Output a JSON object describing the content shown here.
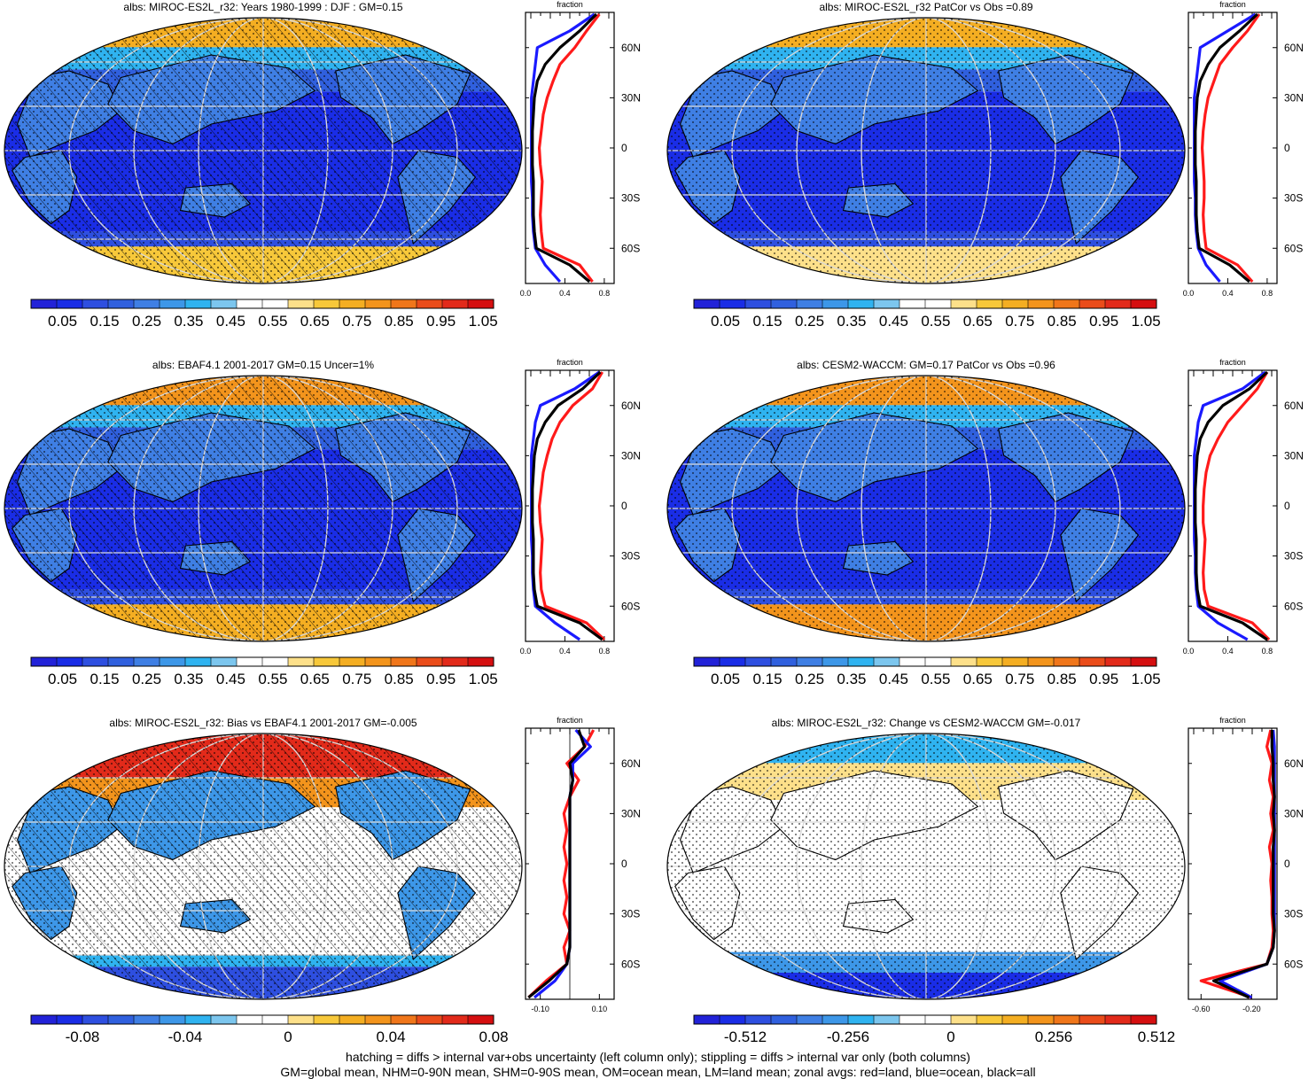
{
  "palette": {
    "abs": [
      "#2222d8",
      "#1a2de6",
      "#2e4fe0",
      "#3060de",
      "#3f7fe4",
      "#3d97e8",
      "#2fb3f0",
      "#7cc6ee",
      "#ffffff",
      "#ffffff",
      "#fde08a",
      "#f7c83a",
      "#f4ae22",
      "#f3941c",
      "#f0761a",
      "#ea4c1a",
      "#e22a1a",
      "#d50f10"
    ],
    "diff": [
      "#2222d8",
      "#1a2de6",
      "#2e4fe0",
      "#3060de",
      "#3f7fe4",
      "#3d97e8",
      "#2fb3f0",
      "#7cc6ee",
      "#ffffff",
      "#ffffff",
      "#fde08a",
      "#f7c83a",
      "#f4ae22",
      "#f3941c",
      "#f0761a",
      "#ea4c1a",
      "#e22a1a",
      "#d50f10"
    ],
    "land": "#ff1a1a",
    "ocean": "#1a1aff",
    "all": "#000000"
  },
  "panels": [
    {
      "id": "p1",
      "title": "albs: MIROC-ES2L_r32: Years 1980-1999 : DJF : GM=0.15",
      "colorbar_labels": [
        "0.05",
        "0.15",
        "0.25",
        "0.35",
        "0.45",
        "0.55",
        "0.65",
        "0.75",
        "0.85",
        "0.95",
        "1.05"
      ],
      "zonal_title": "fraction",
      "zonal_xticks": [
        "0.0",
        "0.4",
        "0.8"
      ],
      "zonal_lat_ticks": [
        "60N",
        "30N",
        "0",
        "30S",
        "60S"
      ],
      "hatching": true,
      "stippling": true,
      "kind": "abs",
      "arctic": 0.78,
      "antarctic": 0.7
    },
    {
      "id": "p2",
      "title": "albs: MIROC-ES2L_r32 PatCor vs Obs =0.89",
      "colorbar_labels": [
        "0.05",
        "0.15",
        "0.25",
        "0.35",
        "0.45",
        "0.55",
        "0.65",
        "0.75",
        "0.85",
        "0.95",
        "1.05"
      ],
      "zonal_title": "fraction",
      "zonal_xticks": [
        "0.0",
        "0.4",
        "0.8"
      ],
      "zonal_lat_ticks": [
        "60N",
        "30N",
        "0",
        "30S",
        "60S"
      ],
      "hatching": false,
      "stippling": true,
      "kind": "abs",
      "arctic": 0.72,
      "antarctic": 0.65
    },
    {
      "id": "p3",
      "title": "albs: EBAF4.1 2001-2017 GM=0.15 Uncer=1%",
      "colorbar_labels": [
        "0.05",
        "0.15",
        "0.25",
        "0.35",
        "0.45",
        "0.55",
        "0.65",
        "0.75",
        "0.85",
        "0.95",
        "1.05"
      ],
      "zonal_title": "fraction",
      "zonal_xticks": [
        "0.0",
        "0.4",
        "0.8"
      ],
      "zonal_lat_ticks": [
        "60N",
        "30N",
        "0",
        "30S",
        "60S"
      ],
      "hatching": true,
      "stippling": true,
      "kind": "abs",
      "arctic": 0.8,
      "antarctic": 0.76
    },
    {
      "id": "p4",
      "title": "albs: CESM2-WACCM: GM=0.17 PatCor vs Obs =0.96",
      "colorbar_labels": [
        "0.05",
        "0.15",
        "0.25",
        "0.35",
        "0.45",
        "0.55",
        "0.65",
        "0.75",
        "0.85",
        "0.95",
        "1.05"
      ],
      "zonal_title": "fraction",
      "zonal_xticks": [
        "0.0",
        "0.4",
        "0.8"
      ],
      "zonal_lat_ticks": [
        "60N",
        "30N",
        "0",
        "30S",
        "60S"
      ],
      "hatching": false,
      "stippling": true,
      "kind": "abs",
      "arctic": 0.82,
      "antarctic": 0.8
    },
    {
      "id": "p5",
      "title": "albs: MIROC-ES2L_r32: Bias vs EBAF4.1 2001-2017 GM=-0.005",
      "colorbar_labels": [
        "-0.08",
        "-0.04",
        "0",
        "0.04",
        "0.08"
      ],
      "zonal_title": "fraction",
      "zonal_xticks": [
        "-0.10",
        "0.10"
      ],
      "zonal_lat_ticks": [
        "60N",
        "30N",
        "0",
        "30S",
        "60S"
      ],
      "hatching": true,
      "stippling": true,
      "kind": "bias",
      "arctic": 0.9,
      "antarctic": 0.12
    },
    {
      "id": "p6",
      "title": "albs: MIROC-ES2L_r32: Change vs CESM2-WACCM GM=-0.017",
      "colorbar_labels": [
        "-0.512",
        "-0.256",
        "0",
        "0.256",
        "0.512"
      ],
      "zonal_title": "fraction",
      "zonal_xticks": [
        "-0.60",
        "-0.20"
      ],
      "zonal_lat_ticks": [
        "60N",
        "30N",
        "0",
        "30S",
        "60S"
      ],
      "hatching": false,
      "stippling": true,
      "kind": "change",
      "arctic": 0.6,
      "antarctic": 0.2
    }
  ],
  "footer": {
    "line1": "hatching = diffs > internal var+obs uncertainty (left column only); stippling = diffs > internal var only (both columns)",
    "line2": "GM=global mean, NHM=0-90N mean, SHM=0-90S mean, OM=ocean mean, LM=land mean; zonal avgs: red=land, blue=ocean, black=all"
  },
  "chart_data": [
    {
      "type": "heatmap",
      "title": "albs: MIROC-ES2L_r32: Years 1980-1999 : DJF : GM=0.15",
      "colorbar": [
        0.05,
        0.15,
        0.25,
        0.35,
        0.45,
        0.55,
        0.65,
        0.75,
        0.85,
        0.95,
        1.05
      ],
      "zonal_avg": {
        "xlim": [
          0,
          0.9
        ],
        "lat": [
          80,
          70,
          60,
          50,
          40,
          30,
          20,
          10,
          0,
          -10,
          -20,
          -30,
          -40,
          -50,
          -60,
          -70,
          -80
        ],
        "series": [
          {
            "name": "red=land",
            "values": [
              0.75,
              0.62,
              0.5,
              0.35,
              0.28,
              0.22,
              0.18,
              0.16,
              0.14,
              0.15,
              0.17,
              0.16,
              0.15,
              0.16,
              0.18,
              0.55,
              0.68
            ]
          },
          {
            "name": "blue=ocean",
            "values": [
              0.7,
              0.45,
              0.12,
              0.1,
              0.08,
              0.06,
              0.06,
              0.06,
              0.06,
              0.06,
              0.06,
              0.07,
              0.07,
              0.08,
              0.1,
              0.2,
              0.35
            ]
          },
          {
            "name": "black=all",
            "values": [
              0.72,
              0.55,
              0.35,
              0.2,
              0.12,
              0.09,
              0.08,
              0.07,
              0.07,
              0.07,
              0.08,
              0.08,
              0.08,
              0.09,
              0.11,
              0.45,
              0.65
            ]
          }
        ]
      }
    },
    {
      "type": "heatmap",
      "title": "albs: MIROC-ES2L_r32 PatCor vs Obs =0.89",
      "colorbar": [
        0.05,
        0.15,
        0.25,
        0.35,
        0.45,
        0.55,
        0.65,
        0.75,
        0.85,
        0.95,
        1.05
      ],
      "zonal_avg": {
        "xlim": [
          0,
          0.9
        ],
        "lat": [
          80,
          70,
          60,
          50,
          40,
          30,
          20,
          10,
          0,
          -10,
          -20,
          -30,
          -40,
          -50,
          -60,
          -70,
          -80
        ],
        "series": [
          {
            "name": "red=land",
            "values": [
              0.72,
              0.6,
              0.45,
              0.32,
              0.26,
              0.2,
              0.17,
              0.15,
              0.14,
              0.15,
              0.16,
              0.16,
              0.15,
              0.16,
              0.18,
              0.5,
              0.65
            ]
          },
          {
            "name": "blue=ocean",
            "values": [
              0.68,
              0.4,
              0.12,
              0.1,
              0.08,
              0.06,
              0.06,
              0.06,
              0.06,
              0.06,
              0.06,
              0.07,
              0.07,
              0.08,
              0.1,
              0.18,
              0.32
            ]
          },
          {
            "name": "black=all",
            "values": [
              0.7,
              0.52,
              0.32,
              0.2,
              0.12,
              0.09,
              0.08,
              0.07,
              0.07,
              0.07,
              0.08,
              0.08,
              0.08,
              0.09,
              0.11,
              0.42,
              0.62
            ]
          }
        ]
      }
    },
    {
      "type": "heatmap",
      "title": "albs: EBAF4.1 2001-2017 GM=0.15 Uncer=1%",
      "colorbar": [
        0.05,
        0.15,
        0.25,
        0.35,
        0.45,
        0.55,
        0.65,
        0.75,
        0.85,
        0.95,
        1.05
      ],
      "zonal_avg": {
        "xlim": [
          0,
          0.9
        ],
        "lat": [
          80,
          70,
          60,
          50,
          40,
          30,
          20,
          10,
          0,
          -10,
          -20,
          -30,
          -40,
          -50,
          -60,
          -70,
          -80
        ],
        "series": [
          {
            "name": "red=land",
            "values": [
              0.78,
              0.68,
              0.48,
              0.35,
              0.27,
              0.22,
              0.18,
              0.16,
              0.14,
              0.15,
              0.17,
              0.16,
              0.15,
              0.16,
              0.2,
              0.62,
              0.8
            ]
          },
          {
            "name": "blue=ocean",
            "values": [
              0.75,
              0.5,
              0.15,
              0.1,
              0.08,
              0.06,
              0.06,
              0.06,
              0.06,
              0.06,
              0.06,
              0.07,
              0.07,
              0.08,
              0.1,
              0.3,
              0.55
            ]
          },
          {
            "name": "black=all",
            "values": [
              0.76,
              0.58,
              0.33,
              0.2,
              0.12,
              0.09,
              0.08,
              0.07,
              0.07,
              0.07,
              0.08,
              0.08,
              0.08,
              0.09,
              0.12,
              0.55,
              0.78
            ]
          }
        ]
      }
    },
    {
      "type": "heatmap",
      "title": "albs: CESM2-WACCM: GM=0.17 PatCor vs Obs =0.96",
      "colorbar": [
        0.05,
        0.15,
        0.25,
        0.35,
        0.45,
        0.55,
        0.65,
        0.75,
        0.85,
        0.95,
        1.05
      ],
      "zonal_avg": {
        "xlim": [
          0,
          0.9
        ],
        "lat": [
          80,
          70,
          60,
          50,
          40,
          30,
          20,
          10,
          0,
          -10,
          -20,
          -30,
          -40,
          -50,
          -60,
          -70,
          -80
        ],
        "series": [
          {
            "name": "red=land",
            "values": [
              0.8,
              0.7,
              0.55,
              0.4,
              0.3,
              0.22,
              0.18,
              0.16,
              0.15,
              0.15,
              0.17,
              0.16,
              0.15,
              0.16,
              0.2,
              0.65,
              0.82
            ]
          },
          {
            "name": "blue=ocean",
            "values": [
              0.78,
              0.55,
              0.15,
              0.1,
              0.08,
              0.06,
              0.06,
              0.06,
              0.06,
              0.06,
              0.06,
              0.07,
              0.07,
              0.08,
              0.1,
              0.3,
              0.6
            ]
          },
          {
            "name": "black=all",
            "values": [
              0.8,
              0.62,
              0.35,
              0.2,
              0.12,
              0.09,
              0.08,
              0.07,
              0.07,
              0.07,
              0.08,
              0.08,
              0.08,
              0.09,
              0.12,
              0.55,
              0.8
            ]
          }
        ]
      }
    },
    {
      "type": "heatmap",
      "title": "albs: MIROC-ES2L_r32: Bias vs EBAF4.1 2001-2017 GM=-0.005",
      "colorbar": [
        -0.08,
        -0.04,
        0,
        0.04,
        0.08
      ],
      "zonal_avg": {
        "xlim": [
          -0.15,
          0.15
        ],
        "lat": [
          80,
          70,
          60,
          50,
          40,
          30,
          20,
          10,
          0,
          -10,
          -20,
          -30,
          -40,
          -50,
          -60,
          -70,
          -80
        ],
        "series": [
          {
            "name": "red=land",
            "values": [
              0.08,
              0.05,
              -0.01,
              0.03,
              0.0,
              -0.02,
              -0.01,
              -0.02,
              -0.01,
              -0.02,
              -0.01,
              -0.02,
              0.0,
              -0.02,
              -0.01,
              -0.08,
              -0.14
            ]
          },
          {
            "name": "blue=ocean",
            "values": [
              0.02,
              0.07,
              0.01,
              0.01,
              0.0,
              0.0,
              0.0,
              0.0,
              0.0,
              0.0,
              0.0,
              0.0,
              0.0,
              0.0,
              -0.01,
              -0.05,
              -0.12
            ]
          },
          {
            "name": "black=all",
            "values": [
              0.03,
              0.05,
              0.0,
              0.01,
              0.0,
              0.0,
              0.0,
              0.0,
              0.0,
              0.0,
              0.0,
              0.0,
              0.0,
              0.0,
              -0.01,
              -0.07,
              -0.14
            ]
          }
        ]
      }
    },
    {
      "type": "heatmap",
      "title": "albs: MIROC-ES2L_r32: Change vs CESM2-WACCM GM=-0.017",
      "colorbar": [
        -0.512,
        -0.256,
        0,
        0.256,
        0.512
      ],
      "zonal_avg": {
        "xlim": [
          -0.7,
          0.0
        ],
        "lat": [
          80,
          70,
          60,
          50,
          40,
          30,
          20,
          10,
          0,
          -10,
          -20,
          -30,
          -40,
          -50,
          -60,
          -70,
          -80
        ],
        "series": [
          {
            "name": "red=land",
            "values": [
              -0.05,
              -0.08,
              -0.04,
              -0.06,
              -0.03,
              -0.05,
              -0.03,
              -0.06,
              -0.04,
              -0.05,
              -0.04,
              -0.04,
              -0.03,
              -0.04,
              -0.08,
              -0.6,
              -0.2
            ]
          },
          {
            "name": "blue=ocean",
            "values": [
              -0.03,
              -0.02,
              -0.02,
              -0.02,
              -0.02,
              -0.02,
              -0.02,
              -0.02,
              -0.02,
              -0.02,
              -0.02,
              -0.02,
              -0.02,
              -0.03,
              -0.08,
              -0.45,
              -0.2
            ]
          },
          {
            "name": "black=all",
            "values": [
              -0.04,
              -0.04,
              -0.03,
              -0.03,
              -0.02,
              -0.03,
              -0.02,
              -0.03,
              -0.03,
              -0.03,
              -0.03,
              -0.03,
              -0.02,
              -0.03,
              -0.08,
              -0.5,
              -0.22
            ]
          }
        ]
      }
    }
  ]
}
